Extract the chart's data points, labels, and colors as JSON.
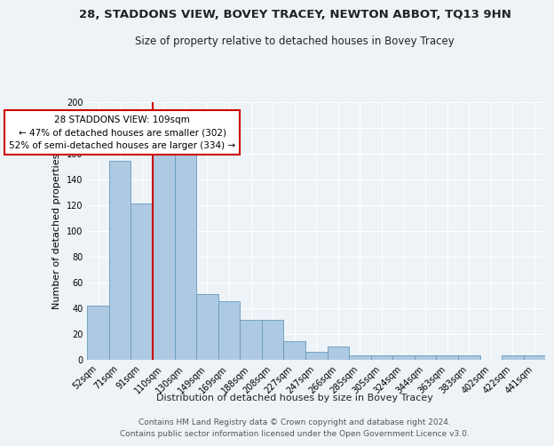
{
  "title": "28, STADDONS VIEW, BOVEY TRACEY, NEWTON ABBOT, TQ13 9HN",
  "subtitle": "Size of property relative to detached houses in Bovey Tracey",
  "xlabel": "Distribution of detached houses by size in Bovey Tracey",
  "ylabel": "Number of detached properties",
  "categories": [
    "52sqm",
    "71sqm",
    "91sqm",
    "110sqm",
    "130sqm",
    "149sqm",
    "169sqm",
    "188sqm",
    "208sqm",
    "227sqm",
    "247sqm",
    "266sqm",
    "285sqm",
    "305sqm",
    "324sqm",
    "344sqm",
    "363sqm",
    "383sqm",
    "402sqm",
    "422sqm",
    "441sqm"
  ],
  "values": [
    42,
    154,
    121,
    163,
    163,
    51,
    45,
    31,
    31,
    14,
    6,
    10,
    3,
    3,
    3,
    3,
    3,
    3,
    0,
    3,
    3
  ],
  "bar_color": "#aec9e2",
  "bar_edge_color": "#6699bb",
  "vline_x": 2.5,
  "vline_color": "#cc0000",
  "annotation_text": "28 STADDONS VIEW: 109sqm\n← 47% of detached houses are smaller (302)\n52% of semi-detached houses are larger (334) →",
  "annotation_box_color": "#ffffff",
  "annotation_box_edge": "#cc0000",
  "ylim": [
    0,
    200
  ],
  "yticks": [
    0,
    20,
    40,
    60,
    80,
    100,
    120,
    140,
    160,
    180,
    200
  ],
  "footer1": "Contains HM Land Registry data © Crown copyright and database right 2024.",
  "footer2": "Contains public sector information licensed under the Open Government Licence v3.0.",
  "bg_color": "#eef3f8",
  "plot_bg_color": "#eef3f8",
  "grid_color": "#ffffff",
  "title_fontsize": 9.5,
  "subtitle_fontsize": 8.5,
  "label_fontsize": 8,
  "tick_fontsize": 7,
  "footer_fontsize": 6.5,
  "annotation_fontsize": 7.5
}
